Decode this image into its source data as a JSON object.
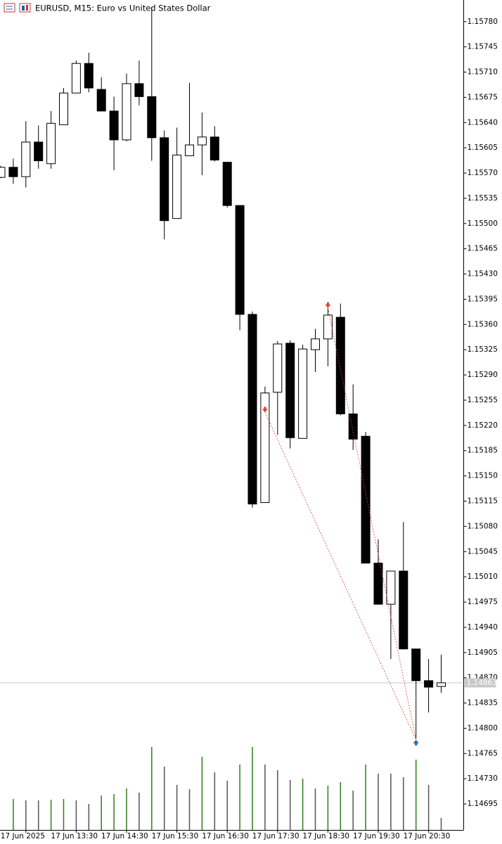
{
  "chart_data": {
    "type": "candlestick",
    "title": "EURUSD, M15:  Euro vs United States Dollar",
    "categories": [
      null,
      null,
      "17 Jun 2025",
      null,
      null,
      null,
      "17 Jun 13:30",
      null,
      null,
      null,
      "17 Jun 14:30",
      null,
      null,
      null,
      "17 Jun 15:30",
      null,
      null,
      null,
      "17 Jun 16:30",
      null,
      null,
      null,
      "17 Jun 17:30",
      null,
      null,
      null,
      "17 Jun 18:30",
      null,
      null,
      null,
      "17 Jun 19:30",
      null,
      null,
      null,
      "17 Jun 20:30",
      null
    ],
    "open": [
      1.15564,
      1.15578,
      1.15565,
      1.15613,
      1.15583,
      1.15637,
      1.15681,
      1.15722,
      1.15686,
      1.15656,
      1.15616,
      1.15694,
      1.15676,
      1.15619,
      1.15507,
      1.15594,
      1.15609,
      1.1562,
      1.15585,
      1.15525,
      1.15374,
      1.15113,
      1.15266,
      1.15334,
      1.15202,
      1.15325,
      1.1534,
      1.1537,
      1.15236,
      1.15205,
      1.15029,
      1.14972,
      1.15018,
      1.1491,
      1.14866,
      1.14858
    ],
    "high": [
      1.1558,
      1.1559,
      1.15642,
      1.15636,
      1.15656,
      1.15688,
      1.15726,
      1.15737,
      1.15703,
      1.15676,
      1.15708,
      1.15726,
      1.158,
      1.15629,
      1.15633,
      1.15695,
      1.15654,
      1.15635,
      1.15585,
      1.15525,
      1.15378,
      1.15274,
      1.15337,
      1.15338,
      1.15332,
      1.15354,
      1.15389,
      1.15389,
      1.15277,
      1.15211,
      1.15062,
      1.15018,
      1.15086,
      1.1491,
      1.14896,
      1.14902
    ],
    "low": [
      1.15563,
      1.15555,
      1.1555,
      1.15576,
      1.15576,
      1.15637,
      1.15681,
      1.15682,
      1.15656,
      1.15574,
      1.15614,
      1.15664,
      1.15587,
      1.15478,
      1.15507,
      1.15594,
      1.15567,
      1.15586,
      1.15522,
      1.15352,
      1.15106,
      1.15113,
      1.15207,
      1.15188,
      1.15202,
      1.15294,
      1.15302,
      1.15234,
      1.15186,
      1.15029,
      1.14972,
      1.14896,
      1.1491,
      1.14786,
      1.14822,
      1.14849
    ],
    "close": [
      1.15578,
      1.15565,
      1.15613,
      1.15587,
      1.15639,
      1.15681,
      1.15722,
      1.15688,
      1.15656,
      1.15616,
      1.15694,
      1.15676,
      1.15619,
      1.15504,
      1.15595,
      1.15609,
      1.1562,
      1.15588,
      1.15525,
      1.15374,
      1.15111,
      1.15265,
      1.15333,
      1.15203,
      1.15326,
      1.1534,
      1.15373,
      1.15236,
      1.15201,
      1.15029,
      1.14972,
      1.15018,
      1.1491,
      1.14866,
      1.14857,
      1.14863
    ],
    "volumes": [
      null,
      44,
      42,
      42,
      43,
      44,
      42,
      37,
      49,
      51,
      59,
      53,
      118,
      90,
      64,
      58,
      104,
      82,
      70,
      93,
      118,
      93,
      85,
      71,
      73,
      59,
      63,
      68,
      56,
      93,
      80,
      80,
      75,
      100,
      64,
      17
    ],
    "volume_up_color": "#2e7d1e",
    "volume_down_color": "#555555",
    "up_color": "#ffffff",
    "down_color": "#000000",
    "current_price": 1.14863,
    "trades": [
      {
        "open_index": 21,
        "open_price": 1.15238,
        "close_index": 33,
        "close_price": 1.14784
      },
      {
        "open_index": 26,
        "open_price": 1.15383,
        "close_index": 33,
        "close_price": 1.14784
      }
    ],
    "sell_color": "#d2462a",
    "buy_color": "#1f6fb5",
    "ylim": [
      1.14659,
      1.1581
    ],
    "yticks": [
      {
        "value": 1.1578,
        "label": "1.15780"
      },
      1.15745,
      {
        "value": 1.1571,
        "label": "1.15710"
      },
      1.15675,
      {
        "value": 1.1564,
        "label": "1.15640"
      },
      1.15605,
      {
        "value": 1.1557,
        "label": "1.15570"
      },
      1.15535,
      {
        "value": 1.155,
        "label": "1.15500"
      },
      1.15465,
      {
        "value": 1.1543,
        "label": "1.15430"
      },
      1.15395,
      {
        "value": 1.1536,
        "label": "1.15360"
      },
      1.15325,
      {
        "value": 1.1529,
        "label": "1.15290"
      },
      1.15255,
      {
        "value": 1.1522,
        "label": "1.15220"
      },
      1.15185,
      {
        "value": 1.1515,
        "label": "1.15150"
      },
      1.15115,
      {
        "value": 1.1508,
        "label": "1.15080"
      },
      1.15045,
      {
        "value": 1.1501,
        "label": "1.15010"
      },
      1.14975,
      {
        "value": 1.1494,
        "label": "1.14940"
      },
      1.14905,
      {
        "value": 1.1487,
        "label": "1.14870"
      },
      1.14835,
      {
        "value": 1.148,
        "label": "1.14800"
      },
      1.14765,
      {
        "value": 1.1473,
        "label": "1.14730"
      },
      1.14695
    ],
    "grid": false
  }
}
